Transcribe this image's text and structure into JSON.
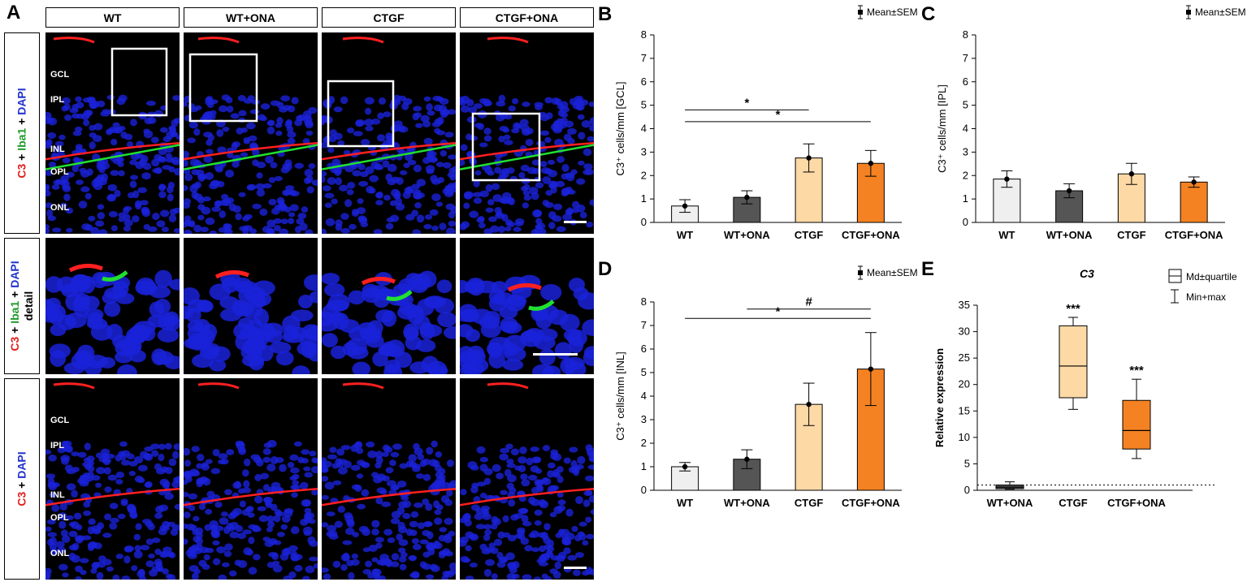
{
  "panels": {
    "A": "A",
    "B": "B",
    "C": "C",
    "D": "D",
    "E": "E"
  },
  "panel_a": {
    "columns": [
      "WT",
      "WT+ONA",
      "CTGF",
      "CTGF+ONA"
    ],
    "row_labels": [
      {
        "parts": [
          {
            "t": "C3",
            "c": "red"
          },
          {
            "t": " + ",
            "c": "black"
          },
          {
            "t": "Iba1",
            "c": "green"
          },
          {
            "t": " + ",
            "c": "black"
          },
          {
            "t": "DAPI",
            "c": "blue"
          }
        ]
      },
      {
        "parts": [
          {
            "t": "C3",
            "c": "red"
          },
          {
            "t": " + ",
            "c": "black"
          },
          {
            "t": "Iba1",
            "c": "green"
          },
          {
            "t": " + ",
            "c": "black"
          },
          {
            "t": "DAPI",
            "c": "blue"
          }
        ],
        "line2": "detail"
      },
      {
        "parts": [
          {
            "t": "C3",
            "c": "red"
          },
          {
            "t": " + ",
            "c": "black"
          },
          {
            "t": "DAPI",
            "c": "blue"
          }
        ]
      }
    ],
    "layers": [
      "GCL",
      "IPL",
      "INL",
      "OPL",
      "ONL"
    ],
    "colors": {
      "nuclei": "#1a22d8",
      "c3": "#ff2020",
      "iba1": "#20e030",
      "background": "#000000"
    }
  },
  "chart_data": [
    {
      "id": "B",
      "type": "bar",
      "categories": [
        "WT",
        "WT+ONA",
        "CTGF",
        "CTGF+ONA"
      ],
      "values": [
        0.7,
        1.07,
        2.75,
        2.52
      ],
      "errors": [
        0.27,
        0.28,
        0.6,
        0.55
      ],
      "colors": [
        "#efefef",
        "#555555",
        "#fdd9a6",
        "#f48222"
      ],
      "ylabel": "C3⁺ cells/mm [GCL]",
      "ylim": [
        0,
        8
      ],
      "yticks": [
        0,
        1,
        2,
        3,
        4,
        5,
        6,
        7,
        8
      ],
      "legend": "Mean±SEM",
      "sig": [
        {
          "from": 0,
          "to": 2,
          "label": "*",
          "y": 4.8
        },
        {
          "from": 0,
          "to": 3,
          "label": "*",
          "y": 4.3
        }
      ]
    },
    {
      "id": "C",
      "type": "bar",
      "categories": [
        "WT",
        "WT+ONA",
        "CTGF",
        "CTGF+ONA"
      ],
      "values": [
        1.85,
        1.35,
        2.07,
        1.72
      ],
      "errors": [
        0.35,
        0.3,
        0.45,
        0.22
      ],
      "colors": [
        "#efefef",
        "#555555",
        "#fdd9a6",
        "#f48222"
      ],
      "ylabel": "C3⁺ cells/mm [IPL]",
      "ylim": [
        0,
        8
      ],
      "yticks": [
        0,
        1,
        2,
        3,
        4,
        5,
        6,
        7,
        8
      ],
      "legend": "Mean±SEM",
      "sig": []
    },
    {
      "id": "D",
      "type": "bar",
      "categories": [
        "WT",
        "WT+ONA",
        "CTGF",
        "CTGF+ONA"
      ],
      "values": [
        1.0,
        1.32,
        3.65,
        5.15
      ],
      "errors": [
        0.18,
        0.4,
        0.9,
        1.55
      ],
      "colors": [
        "#efefef",
        "#555555",
        "#fdd9a6",
        "#f48222"
      ],
      "ylabel": "C3⁺ cells/mm [INL]",
      "ylim": [
        0,
        8
      ],
      "yticks": [
        0,
        1,
        2,
        3,
        4,
        5,
        6,
        7,
        8
      ],
      "legend": "Mean±SEM",
      "sig": [
        {
          "from": 1,
          "to": 3,
          "label": "#",
          "y": 7.7
        },
        {
          "from": 0,
          "to": 3,
          "label": "*",
          "y": 7.3
        }
      ]
    },
    {
      "id": "E",
      "type": "box",
      "title": "C3",
      "categories": [
        "WT+ONA",
        "CTGF",
        "CTGF+ONA"
      ],
      "boxes": [
        {
          "min": 0.2,
          "q1": 0.3,
          "median": 0.6,
          "q3": 1.0,
          "max": 1.6
        },
        {
          "min": 15.3,
          "q1": 17.5,
          "median": 23.5,
          "q3": 31.1,
          "max": 32.7
        },
        {
          "min": 6.0,
          "q1": 7.8,
          "median": 11.3,
          "q3": 17.0,
          "max": 21.0
        }
      ],
      "colors": [
        "#555555",
        "#fdd9a6",
        "#f48222"
      ],
      "annotations": [
        "",
        "***",
        "***"
      ],
      "ylabel": "Relative expression",
      "ylim": [
        0,
        35
      ],
      "yticks": [
        0,
        5,
        10,
        15,
        20,
        25,
        30,
        35
      ],
      "reference_line": 1,
      "legend": [
        "Md±quartile",
        "Min+max"
      ]
    }
  ]
}
